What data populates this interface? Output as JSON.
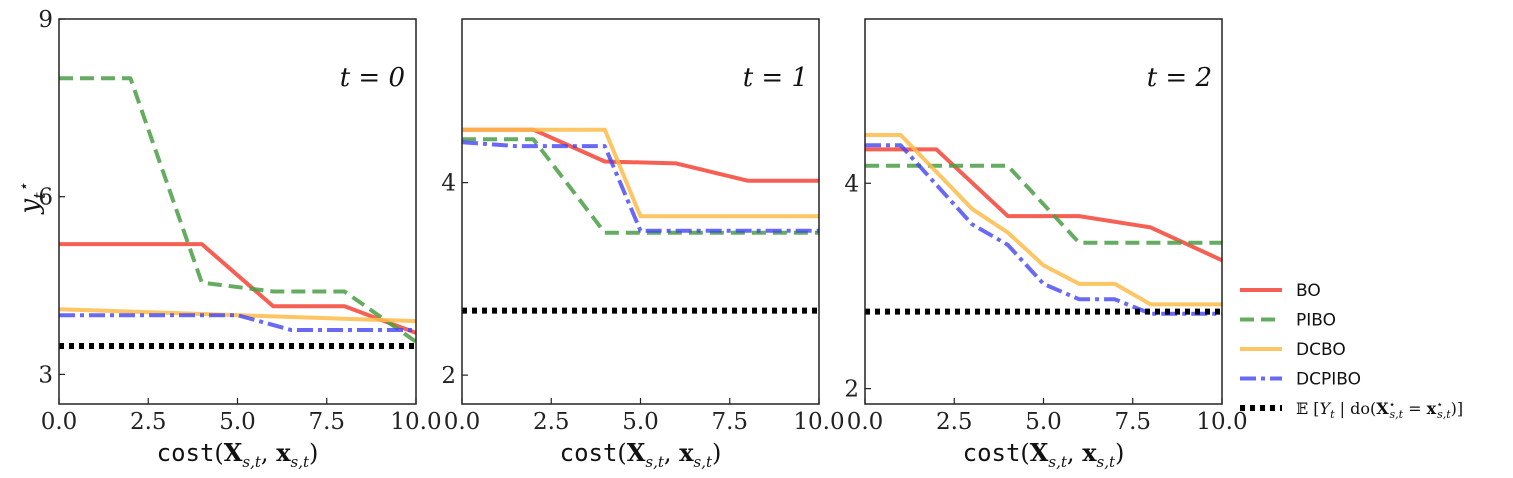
{
  "chart_data": [
    {
      "type": "line",
      "title": "t = 0",
      "xlabel": "cost(X_{s,t}, x_{s,t})",
      "ylabel": "y_t*",
      "xlim": [
        0,
        10
      ],
      "ylim": [
        2.5,
        9
      ],
      "xticks": [
        0.0,
        2.5,
        5.0,
        7.5,
        10.0
      ],
      "yticks": [
        3,
        6,
        9
      ],
      "series": [
        {
          "name": "BO",
          "x": [
            0,
            4,
            6,
            8,
            10
          ],
          "y": [
            5.2,
            5.2,
            4.15,
            4.15,
            3.7
          ]
        },
        {
          "name": "PIBO",
          "x": [
            0,
            2,
            4,
            6,
            8,
            10
          ],
          "y": [
            8.0,
            8.0,
            4.55,
            4.4,
            4.4,
            3.55
          ]
        },
        {
          "name": "DCBO",
          "x": [
            0,
            10
          ],
          "y": [
            4.1,
            3.9
          ]
        },
        {
          "name": "DCPIBO",
          "x": [
            0,
            5,
            6.5,
            10
          ],
          "y": [
            4.0,
            4.0,
            3.75,
            3.75
          ]
        },
        {
          "name": "E[Y_t | do(X*_{s,t} = x*_{s,t})]",
          "x": [
            0,
            10
          ],
          "y": [
            3.48,
            3.48
          ]
        }
      ]
    },
    {
      "type": "line",
      "title": "t = 1",
      "xlabel": "cost(X_{s,t}, x_{s,t})",
      "ylabel": "",
      "xlim": [
        0,
        10
      ],
      "ylim": [
        1.7,
        5.7
      ],
      "xticks": [
        0.0,
        2.5,
        5.0,
        7.5,
        10.0
      ],
      "yticks": [
        2,
        4
      ],
      "series": [
        {
          "name": "BO",
          "x": [
            0,
            2,
            4,
            6,
            8,
            10
          ],
          "y": [
            4.55,
            4.55,
            4.22,
            4.2,
            4.02,
            4.02
          ]
        },
        {
          "name": "PIBO",
          "x": [
            0,
            2,
            4,
            10
          ],
          "y": [
            4.45,
            4.45,
            3.48,
            3.48
          ]
        },
        {
          "name": "DCBO",
          "x": [
            0,
            4,
            5,
            10
          ],
          "y": [
            4.55,
            4.55,
            3.65,
            3.65
          ]
        },
        {
          "name": "DCPIBO",
          "x": [
            0,
            1.5,
            4,
            5,
            10
          ],
          "y": [
            4.42,
            4.38,
            4.38,
            3.5,
            3.5
          ]
        },
        {
          "name": "E[Y_t | do(X*_{s,t} = x*_{s,t})]",
          "x": [
            0,
            10
          ],
          "y": [
            2.67,
            2.67
          ]
        }
      ]
    },
    {
      "type": "line",
      "title": "t = 2",
      "xlabel": "cost(X_{s,t}, x_{s,t})",
      "ylabel": "",
      "xlim": [
        0,
        10
      ],
      "ylim": [
        1.85,
        5.6
      ],
      "xticks": [
        0.0,
        2.5,
        5.0,
        7.5,
        10.0
      ],
      "yticks": [
        2,
        4
      ],
      "series": [
        {
          "name": "BO",
          "x": [
            0,
            2,
            4,
            6,
            8,
            10
          ],
          "y": [
            4.33,
            4.33,
            3.68,
            3.68,
            3.57,
            3.25
          ]
        },
        {
          "name": "PIBO",
          "x": [
            0,
            4,
            6,
            10
          ],
          "y": [
            4.17,
            4.17,
            3.42,
            3.42
          ]
        },
        {
          "name": "DCBO",
          "x": [
            0,
            1,
            3,
            4,
            5,
            6,
            7,
            8,
            10
          ],
          "y": [
            4.47,
            4.47,
            3.75,
            3.52,
            3.2,
            3.02,
            3.02,
            2.82,
            2.82
          ]
        },
        {
          "name": "DCPIBO",
          "x": [
            0,
            1,
            3,
            4,
            5,
            6,
            7,
            8,
            10
          ],
          "y": [
            4.37,
            4.37,
            3.6,
            3.4,
            3.02,
            2.87,
            2.87,
            2.73,
            2.73
          ]
        },
        {
          "name": "E[Y_t | do(X*_{s,t} = x*_{s,t})]",
          "x": [
            0,
            10
          ],
          "y": [
            2.75,
            2.75
          ]
        }
      ]
    }
  ],
  "legend": {
    "placement": "right",
    "entries": [
      {
        "label": "BO",
        "color": "#f44336",
        "style": "solid"
      },
      {
        "label": "PIBO",
        "color": "#4a9e44",
        "style": "dashed"
      },
      {
        "label": "DCBO",
        "color": "#fdbb48",
        "style": "solid"
      },
      {
        "label": "DCPIBO",
        "color": "#4444f5",
        "style": "dashdot"
      },
      {
        "label": "E[Y_t | do(X*_{s,t} = x*_{s,t})]",
        "color": "#000000",
        "style": "dotted"
      }
    ]
  }
}
